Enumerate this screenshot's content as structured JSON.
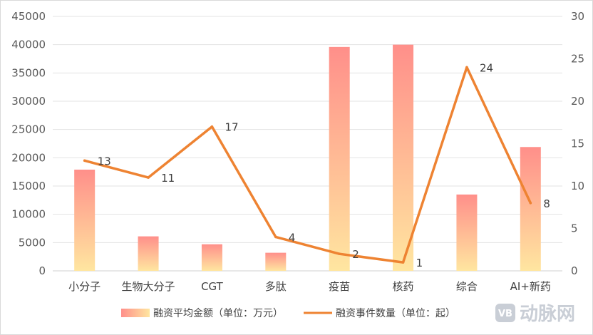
{
  "chart_data": {
    "type": "bar",
    "categories": [
      "小分子",
      "生物大分子",
      "CGT",
      "多肽",
      "疫苗",
      "核药",
      "综合",
      "AI+新药"
    ],
    "series": [
      {
        "name": "融资平均金额（单位：万元）",
        "type": "bar",
        "axis": "left",
        "values": [
          17900,
          6100,
          4700,
          3200,
          39600,
          40000,
          13500,
          21900
        ]
      },
      {
        "name": "融资事件数量（单位：起）",
        "type": "line",
        "axis": "right",
        "values": [
          13,
          11,
          17,
          4,
          2,
          1,
          24,
          8
        ]
      }
    ],
    "ylim": [
      0,
      45000
    ],
    "y_ticks": [
      "0",
      "5000",
      "10000",
      "15000",
      "20000",
      "25000",
      "30000",
      "35000",
      "40000",
      "45000"
    ],
    "y2lim": [
      0,
      30
    ],
    "y2_ticks": [
      "0",
      "5",
      "10",
      "15",
      "20",
      "25",
      "30"
    ],
    "grid": true,
    "legend_position": "bottom",
    "colors": {
      "bar_top": "#ff8f8a",
      "bar_bottom": "#ffe6a0",
      "line": "#ee8332"
    }
  },
  "watermark": {
    "badge": "VB",
    "text": "动脉网"
  }
}
